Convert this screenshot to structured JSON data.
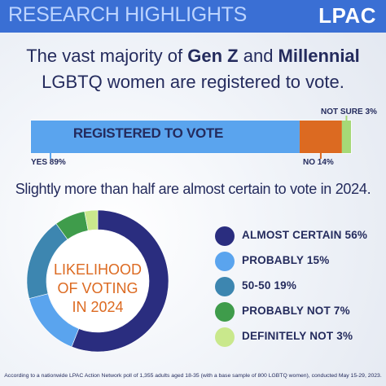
{
  "header": {
    "title": "RESEARCH HIGHLIGHTS",
    "logo": "LPAC"
  },
  "headline": {
    "part1": "The vast majority of ",
    "genz": "Gen Z",
    "part2": " and ",
    "millennial": "Millennial",
    "line2": "LGBTQ women are registered to vote."
  },
  "subhead": "Slightly more than half are almost certain to vote in 2024.",
  "donut_center": {
    "line1": "LIKELIHOOD",
    "line2": "OF VOTING",
    "line3": "IN 2024"
  },
  "footnote": "According to a nationwide LPAC Action Network poll of 1,355 adults aged 18-35 (with a base sample of 800 LGBTQ women), conducted May 15-29, 2023.",
  "colors": {
    "header": "#3a6fd4",
    "navy": "#242b5d",
    "orange": "#dc6a21"
  },
  "chart_data": [
    {
      "type": "bar",
      "orientation": "horizontal-stacked",
      "bar_label": "REGISTERED TO VOTE",
      "segments": [
        {
          "label": "YES 89%",
          "value": 89,
          "color": "#5aa4ee"
        },
        {
          "label": "NO 14%",
          "value": 14,
          "color": "#dc6a21"
        },
        {
          "label": "NOT SURE 3%",
          "value": 3,
          "color": "#a6d977"
        }
      ]
    },
    {
      "type": "pie",
      "style": "donut",
      "start": "top, clockwise",
      "slices": [
        {
          "label": "ALMOST CERTAIN 56%",
          "value": 56,
          "color": "#2a2d7f"
        },
        {
          "label": "PROBABLY 15%",
          "value": 15,
          "color": "#5aa4ee"
        },
        {
          "label": "50-50 19%",
          "value": 19,
          "color": "#3d86b0"
        },
        {
          "label": "PROBABLY NOT 7%",
          "value": 7,
          "color": "#3f9c4b"
        },
        {
          "label": "DEFINITELY NOT 3%",
          "value": 3,
          "color": "#c9e88c"
        }
      ]
    }
  ]
}
